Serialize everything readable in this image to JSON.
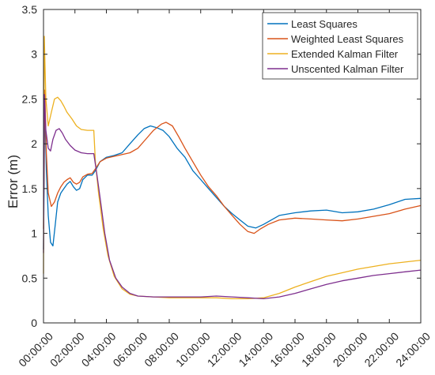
{
  "chart_data": {
    "type": "line",
    "title": "",
    "xlabel": "",
    "ylabel": "Error (m)",
    "x_ticks": [
      "00:00:00",
      "02:00:00",
      "04:00:00",
      "06:00:00",
      "08:00:00",
      "10:00:00",
      "12:00:00",
      "14:00:00",
      "16:00:00",
      "18:00:00",
      "20:00:00",
      "22:00:00",
      "24:00:00"
    ],
    "xlim_hours": [
      0,
      24
    ],
    "y_ticks": [
      "0",
      "0.5",
      "1",
      "1.5",
      "2",
      "2.5",
      "3",
      "3.5"
    ],
    "ylim": [
      0,
      3.5
    ],
    "grid": false,
    "legend_position": "top-right",
    "series": [
      {
        "name": "Least Squares",
        "color": "#0072BD",
        "points": [
          [
            0,
            0.82
          ],
          [
            0.08,
            2.45
          ],
          [
            0.18,
            1.7
          ],
          [
            0.3,
            1.2
          ],
          [
            0.45,
            0.9
          ],
          [
            0.6,
            0.86
          ],
          [
            0.75,
            1.1
          ],
          [
            0.9,
            1.35
          ],
          [
            1.1,
            1.45
          ],
          [
            1.3,
            1.5
          ],
          [
            1.5,
            1.55
          ],
          [
            1.7,
            1.58
          ],
          [
            1.9,
            1.52
          ],
          [
            2.1,
            1.48
          ],
          [
            2.3,
            1.5
          ],
          [
            2.5,
            1.6
          ],
          [
            2.8,
            1.65
          ],
          [
            3.1,
            1.65
          ],
          [
            3.3,
            1.7
          ],
          [
            3.6,
            1.8
          ],
          [
            4.0,
            1.85
          ],
          [
            4.5,
            1.87
          ],
          [
            5.0,
            1.9
          ],
          [
            5.5,
            2.0
          ],
          [
            6.0,
            2.1
          ],
          [
            6.4,
            2.17
          ],
          [
            6.8,
            2.2
          ],
          [
            7.2,
            2.18
          ],
          [
            7.6,
            2.15
          ],
          [
            8.0,
            2.08
          ],
          [
            8.5,
            1.95
          ],
          [
            9.0,
            1.85
          ],
          [
            9.5,
            1.7
          ],
          [
            10.0,
            1.6
          ],
          [
            10.5,
            1.5
          ],
          [
            11.0,
            1.4
          ],
          [
            11.5,
            1.3
          ],
          [
            12.0,
            1.22
          ],
          [
            12.5,
            1.15
          ],
          [
            13.0,
            1.08
          ],
          [
            13.5,
            1.06
          ],
          [
            14.0,
            1.1
          ],
          [
            14.5,
            1.15
          ],
          [
            15.0,
            1.2
          ],
          [
            16.0,
            1.23
          ],
          [
            17.0,
            1.25
          ],
          [
            18.0,
            1.26
          ],
          [
            19.0,
            1.23
          ],
          [
            20.0,
            1.24
          ],
          [
            21.0,
            1.27
          ],
          [
            22.0,
            1.32
          ],
          [
            23.0,
            1.38
          ],
          [
            24.0,
            1.39
          ]
        ]
      },
      {
        "name": "Weighted Least Squares",
        "color": "#D95319",
        "points": [
          [
            0,
            1.05
          ],
          [
            0.08,
            2.6
          ],
          [
            0.18,
            1.9
          ],
          [
            0.3,
            1.45
          ],
          [
            0.5,
            1.3
          ],
          [
            0.7,
            1.35
          ],
          [
            0.9,
            1.45
          ],
          [
            1.1,
            1.52
          ],
          [
            1.3,
            1.57
          ],
          [
            1.5,
            1.6
          ],
          [
            1.7,
            1.62
          ],
          [
            1.9,
            1.57
          ],
          [
            2.1,
            1.55
          ],
          [
            2.3,
            1.57
          ],
          [
            2.5,
            1.63
          ],
          [
            2.8,
            1.66
          ],
          [
            3.1,
            1.67
          ],
          [
            3.3,
            1.72
          ],
          [
            3.6,
            1.8
          ],
          [
            4.0,
            1.84
          ],
          [
            4.5,
            1.86
          ],
          [
            5.0,
            1.88
          ],
          [
            5.5,
            1.9
          ],
          [
            6.0,
            1.95
          ],
          [
            6.5,
            2.05
          ],
          [
            7.0,
            2.15
          ],
          [
            7.5,
            2.22
          ],
          [
            7.8,
            2.24
          ],
          [
            8.2,
            2.2
          ],
          [
            8.6,
            2.08
          ],
          [
            9.0,
            1.95
          ],
          [
            9.5,
            1.8
          ],
          [
            10.0,
            1.65
          ],
          [
            10.5,
            1.52
          ],
          [
            11.0,
            1.42
          ],
          [
            11.5,
            1.3
          ],
          [
            12.0,
            1.2
          ],
          [
            12.5,
            1.1
          ],
          [
            13.0,
            1.02
          ],
          [
            13.4,
            1.0
          ],
          [
            13.8,
            1.05
          ],
          [
            14.3,
            1.1
          ],
          [
            15.0,
            1.15
          ],
          [
            16.0,
            1.17
          ],
          [
            17.0,
            1.16
          ],
          [
            18.0,
            1.15
          ],
          [
            19.0,
            1.14
          ],
          [
            20.0,
            1.16
          ],
          [
            21.0,
            1.19
          ],
          [
            22.0,
            1.22
          ],
          [
            23.0,
            1.27
          ],
          [
            24.0,
            1.31
          ]
        ]
      },
      {
        "name": "Extended Kalman Filter",
        "color": "#EDB120",
        "points": [
          [
            0,
            0.55
          ],
          [
            0.05,
            3.2
          ],
          [
            0.15,
            2.5
          ],
          [
            0.3,
            2.2
          ],
          [
            0.5,
            2.35
          ],
          [
            0.7,
            2.5
          ],
          [
            0.9,
            2.52
          ],
          [
            1.1,
            2.48
          ],
          [
            1.3,
            2.42
          ],
          [
            1.5,
            2.35
          ],
          [
            1.8,
            2.28
          ],
          [
            2.1,
            2.2
          ],
          [
            2.4,
            2.16
          ],
          [
            2.8,
            2.15
          ],
          [
            3.2,
            2.15
          ],
          [
            3.3,
            1.8
          ],
          [
            3.5,
            1.45
          ],
          [
            3.8,
            1.05
          ],
          [
            4.1,
            0.75
          ],
          [
            4.5,
            0.52
          ],
          [
            5.0,
            0.38
          ],
          [
            5.5,
            0.32
          ],
          [
            6.0,
            0.3
          ],
          [
            7.0,
            0.29
          ],
          [
            8.0,
            0.28
          ],
          [
            9.0,
            0.28
          ],
          [
            10.0,
            0.28
          ],
          [
            11.0,
            0.28
          ],
          [
            12.0,
            0.27
          ],
          [
            13.0,
            0.27
          ],
          [
            14.0,
            0.28
          ],
          [
            15.0,
            0.33
          ],
          [
            16.0,
            0.4
          ],
          [
            17.0,
            0.46
          ],
          [
            18.0,
            0.52
          ],
          [
            19.0,
            0.56
          ],
          [
            20.0,
            0.6
          ],
          [
            21.0,
            0.63
          ],
          [
            22.0,
            0.66
          ],
          [
            23.0,
            0.68
          ],
          [
            24.0,
            0.7
          ]
        ]
      },
      {
        "name": "Unscented Kalman Filter",
        "color": "#7E2F8E",
        "points": [
          [
            0,
            0.78
          ],
          [
            0.05,
            2.55
          ],
          [
            0.15,
            2.15
          ],
          [
            0.3,
            1.95
          ],
          [
            0.45,
            1.92
          ],
          [
            0.6,
            2.05
          ],
          [
            0.8,
            2.15
          ],
          [
            1.0,
            2.17
          ],
          [
            1.2,
            2.12
          ],
          [
            1.4,
            2.05
          ],
          [
            1.7,
            1.98
          ],
          [
            2.0,
            1.93
          ],
          [
            2.4,
            1.9
          ],
          [
            2.8,
            1.89
          ],
          [
            3.2,
            1.89
          ],
          [
            3.4,
            1.65
          ],
          [
            3.6,
            1.4
          ],
          [
            3.9,
            1.0
          ],
          [
            4.2,
            0.7
          ],
          [
            4.6,
            0.5
          ],
          [
            5.0,
            0.4
          ],
          [
            5.5,
            0.33
          ],
          [
            6.0,
            0.3
          ],
          [
            7.0,
            0.29
          ],
          [
            8.0,
            0.29
          ],
          [
            9.0,
            0.29
          ],
          [
            10.0,
            0.29
          ],
          [
            11.0,
            0.3
          ],
          [
            12.0,
            0.29
          ],
          [
            13.0,
            0.28
          ],
          [
            14.0,
            0.27
          ],
          [
            15.0,
            0.29
          ],
          [
            16.0,
            0.33
          ],
          [
            17.0,
            0.38
          ],
          [
            18.0,
            0.43
          ],
          [
            19.0,
            0.47
          ],
          [
            20.0,
            0.5
          ],
          [
            21.0,
            0.53
          ],
          [
            22.0,
            0.55
          ],
          [
            23.0,
            0.57
          ],
          [
            24.0,
            0.59
          ]
        ]
      }
    ]
  }
}
